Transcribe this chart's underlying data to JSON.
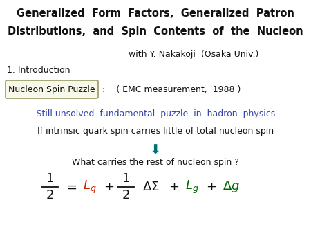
{
  "title_line1": "Generalized  Form  Factors,  Generalized  Patron",
  "title_line2": "Distributions,  and  Spin  Contents  of  the  Nucleon",
  "subtitle": "with Y. Nakakoji  (Osaka Univ.)",
  "intro": "1. Introduction",
  "box_label": "Nucleon Spin Puzzle",
  "colon_emc": ":    ( EMC measurement,  1988 )",
  "blue_text": "- Still unsolved  fundamental  puzzle  in  hadron  physics -",
  "if_text": "If intrinsic quark spin carries little of total nucleon spin",
  "what_text": "What carries the rest of nucleon spin ?",
  "arrow_color": "#007070",
  "blue_color": "#3344AA",
  "red_color": "#CC2200",
  "green_color": "#006600",
  "box_border_color": "#999966",
  "box_face_color": "#f8f8e8",
  "text_color": "#111111"
}
